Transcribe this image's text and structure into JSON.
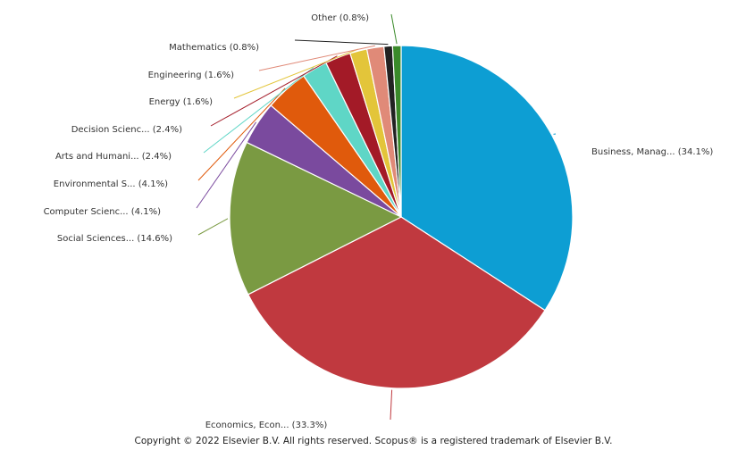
{
  "chart_data": {
    "type": "pie",
    "title": "",
    "legend": "none",
    "slices": [
      {
        "label": "Business, Manag... (34.1%)",
        "value": 34.1,
        "color": "#0d9ed3"
      },
      {
        "label": "Economics, Econ... (33.3%)",
        "value": 33.3,
        "color": "#c0393f"
      },
      {
        "label": "Social Sciences... (14.6%)",
        "value": 14.6,
        "color": "#7a9a42"
      },
      {
        "label": "Computer Scienc... (4.1%)",
        "value": 4.1,
        "color": "#7a4a9e"
      },
      {
        "label": "Environmental S... (4.1%)",
        "value": 4.1,
        "color": "#e05a0c"
      },
      {
        "label": "Arts and Humani... (2.4%)",
        "value": 2.4,
        "color": "#5fd6c6"
      },
      {
        "label": "Decision Scienc... (2.4%)",
        "value": 2.4,
        "color": "#a31a27"
      },
      {
        "label": "Energy (1.6%)",
        "value": 1.6,
        "color": "#e3c53a"
      },
      {
        "label": "Engineering (1.6%)",
        "value": 1.6,
        "color": "#e08a78"
      },
      {
        "label": "Mathematics (0.8%)",
        "value": 0.8,
        "color": "#222222"
      },
      {
        "label": "Other (0.8%)",
        "value": 0.8,
        "color": "#3a8a2a"
      }
    ]
  },
  "footer": {
    "copyright": "Copyright © 2022 Elsevier B.V. All rights reserved. Scopus® is a registered trademark of Elsevier B.V."
  }
}
